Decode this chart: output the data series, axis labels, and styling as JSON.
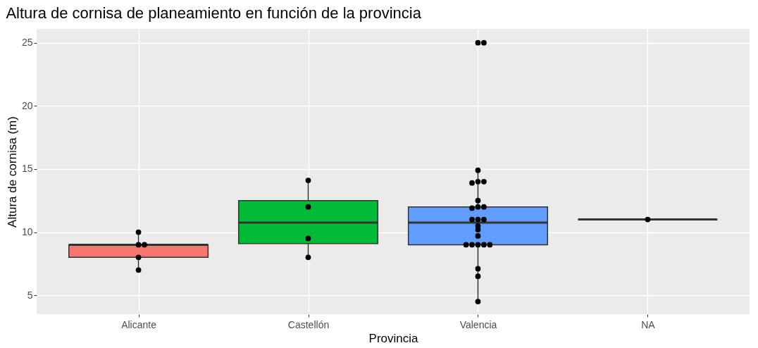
{
  "chart_data": {
    "type": "box",
    "title": "Altura de cornisa de planeamiento en función de la provincia",
    "xlabel": "Provincia",
    "ylabel": "Altura de cornisa (m)",
    "categories": [
      "Alicante",
      "Castellón",
      "Valencia",
      "NA"
    ],
    "colors": [
      "#f8766d",
      "#00ba38",
      "#619cff",
      "#333333"
    ],
    "boxes": [
      {
        "low": 7,
        "q1": 8,
        "median": 9,
        "q3": 9,
        "high": 10
      },
      {
        "low": 8,
        "q1": 9.1,
        "median": 10.75,
        "q3": 12.5,
        "high": 14
      },
      {
        "low": 4.5,
        "q1": 9,
        "median": 10.75,
        "q3": 12,
        "high": 15
      },
      {
        "low": 11,
        "q1": 11,
        "median": 11,
        "q3": 11,
        "high": 11
      }
    ],
    "series": [
      {
        "type": "scatter",
        "color": "#000000",
        "x": [
          "Alicante",
          "Alicante",
          "Alicante",
          "Alicante",
          "Alicante",
          "Castellón",
          "Castellón",
          "Castellón",
          "Castellón",
          "Valencia",
          "Valencia",
          "Valencia",
          "Valencia",
          "Valencia",
          "Valencia",
          "Valencia",
          "Valencia",
          "Valencia",
          "Valencia",
          "Valencia",
          "Valencia",
          "Valencia",
          "Valencia",
          "Valencia",
          "Valencia",
          "Valencia",
          "Valencia",
          "Valencia",
          "Valencia",
          "Valencia",
          "Valencia",
          "Valencia",
          "Valencia",
          "NA"
        ],
        "values": [
          10,
          9,
          9,
          8,
          7,
          14.1,
          12,
          9.5,
          8,
          25,
          25,
          14.9,
          14,
          14,
          13.9,
          12.5,
          12,
          12,
          11.9,
          11,
          11,
          11,
          10.5,
          10.2,
          9.7,
          9,
          9,
          9,
          9,
          9,
          7.1,
          6.5,
          4.5,
          11
        ]
      }
    ],
    "ylim": [
      3.5,
      26.1
    ],
    "yticks": [
      5,
      10,
      15,
      20,
      25
    ],
    "grid": true,
    "legend": false,
    "marker": "circle"
  }
}
